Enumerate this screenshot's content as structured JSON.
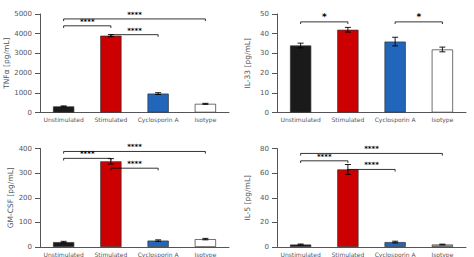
{
  "chart_data": [
    {
      "type": "bar",
      "ylabel": "TNFα [pg/mL]",
      "categories": [
        "Unstimulated",
        "Stimulated",
        "Cyclosporin A",
        "Isotype"
      ],
      "values": [
        310,
        3900,
        960,
        440
      ],
      "errors": [
        25,
        55,
        45,
        25
      ],
      "colors": [
        "#1a1a1a",
        "#cc0000",
        "#2266bb",
        "#ffffff"
      ],
      "ylim": [
        0,
        5000
      ],
      "yticks": [
        0,
        1000,
        2000,
        3000,
        4000,
        5000
      ],
      "grid": false,
      "annotations": [
        {
          "from": "Unstimulated",
          "to": "Stimulated",
          "y": 4400,
          "text": "****"
        },
        {
          "from": "Stimulated",
          "to": "Cyclosporin A",
          "y": 3950,
          "text": "****"
        },
        {
          "from": "Unstimulated",
          "to": "Isotype",
          "y": 4750,
          "text": "****"
        }
      ]
    },
    {
      "type": "bar",
      "ylabel": "IL-33 [pg/mL]",
      "categories": [
        "Unstimulated",
        "Stimulated",
        "Cyclosporin A",
        "Isotype"
      ],
      "values": [
        34,
        42,
        36,
        32
      ],
      "errors": [
        1.2,
        1.2,
        2.2,
        1.2
      ],
      "colors": [
        "#1a1a1a",
        "#cc0000",
        "#2266bb",
        "#ffffff"
      ],
      "ylim": [
        0,
        50
      ],
      "yticks": [
        0,
        10,
        20,
        30,
        40,
        50
      ],
      "grid": false,
      "annotations": [
        {
          "from": "Unstimulated",
          "to": "Stimulated",
          "y": 46,
          "text": "*"
        },
        {
          "from": "Cyclosporin A",
          "to": "Isotype",
          "y": 46,
          "text": "*"
        }
      ]
    },
    {
      "type": "bar",
      "ylabel": "GM-CSF [pg/mL]",
      "categories": [
        "Unstimulated",
        "Stimulated",
        "Cyclosporin A",
        "Isotype"
      ],
      "values": [
        20,
        348,
        26,
        32
      ],
      "errors": [
        3,
        11,
        3,
        3
      ],
      "colors": [
        "#1a1a1a",
        "#cc0000",
        "#2266bb",
        "#ffffff"
      ],
      "ylim": [
        0,
        400
      ],
      "yticks": [
        0,
        100,
        200,
        300,
        400
      ],
      "grid": false,
      "annotations": [
        {
          "from": "Unstimulated",
          "to": "Stimulated",
          "y": 360,
          "text": "****"
        },
        {
          "from": "Stimulated",
          "to": "Cyclosporin A",
          "y": 320,
          "text": "****"
        },
        {
          "from": "Unstimulated",
          "to": "Isotype",
          "y": 388,
          "text": "****"
        }
      ]
    },
    {
      "type": "bar",
      "ylabel": "IL-5 [pg/mL]",
      "categories": [
        "Unstimulated",
        "Stimulated",
        "Cyclosporin A",
        "Isotype"
      ],
      "values": [
        2,
        63,
        4,
        2
      ],
      "errors": [
        0.4,
        4,
        0.7,
        0.3
      ],
      "colors": [
        "#1a1a1a",
        "#cc0000",
        "#2266bb",
        "#aaaaaa"
      ],
      "ylim": [
        0,
        80
      ],
      "yticks": [
        0,
        20,
        40,
        60,
        80
      ],
      "grid": false,
      "annotations": [
        {
          "from": "Unstimulated",
          "to": "Stimulated",
          "y": 70,
          "text": "****"
        },
        {
          "from": "Stimulated",
          "to": "Cyclosporin A",
          "y": 63,
          "text": "****"
        },
        {
          "from": "Unstimulated",
          "to": "Isotype",
          "y": 76,
          "text": "****"
        }
      ]
    }
  ]
}
